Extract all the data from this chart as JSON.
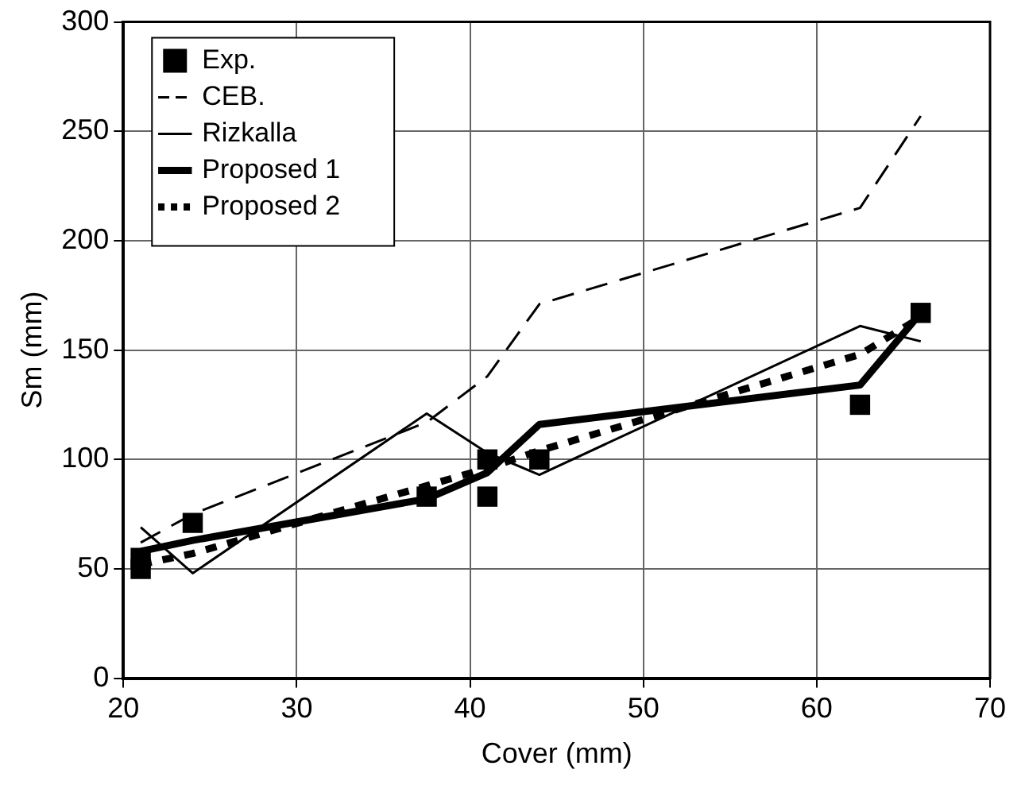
{
  "chart_data": {
    "type": "line",
    "xlabel": "Cover (mm)",
    "ylabel": "Sm (mm)",
    "xlim": [
      20,
      70
    ],
    "xticks": [
      20,
      30,
      40,
      50,
      60,
      70
    ],
    "ylim": [
      0,
      300
    ],
    "yticks": [
      0,
      50,
      100,
      150,
      200,
      250,
      300
    ],
    "grid": true,
    "legend": "top left",
    "series": [
      {
        "name": "Exp.",
        "type": "scatter",
        "marker": "square",
        "color": "#000000",
        "x": [
          21,
          21,
          24,
          37.5,
          41,
          41,
          44,
          62.5,
          66
        ],
        "values": [
          55,
          50,
          71,
          83,
          100,
          83,
          100,
          125,
          167
        ]
      },
      {
        "name": "CEB.",
        "type": "line",
        "line_style": "dashed",
        "marker": "none",
        "color": "#000000",
        "x": [
          21,
          24,
          37.5,
          41,
          44,
          62.5,
          66
        ],
        "values": [
          62,
          75,
          117,
          138,
          171,
          215,
          257
        ]
      },
      {
        "name": "Rizkalla",
        "type": "line",
        "line_style": "solid",
        "marker": "none",
        "color": "#000000",
        "x": [
          21,
          24,
          37.5,
          41,
          44,
          62.5,
          66
        ],
        "values": [
          69,
          48,
          121,
          103,
          93,
          161,
          154
        ]
      },
      {
        "name": "Proposed 1",
        "type": "line",
        "line_style": "solid",
        "marker": "none",
        "color": "#000000",
        "x": [
          21,
          24,
          37.5,
          41,
          44,
          62.5,
          66
        ],
        "values": [
          58,
          63,
          82,
          94,
          116,
          134,
          167
        ]
      },
      {
        "name": "Proposed 2",
        "type": "line",
        "line_style": "dotted",
        "marker": "none",
        "color": "#000000",
        "x": [
          21,
          24,
          37.5,
          41,
          44,
          62.5,
          66
        ],
        "values": [
          52,
          57,
          88,
          96,
          104,
          148,
          165
        ]
      }
    ]
  }
}
